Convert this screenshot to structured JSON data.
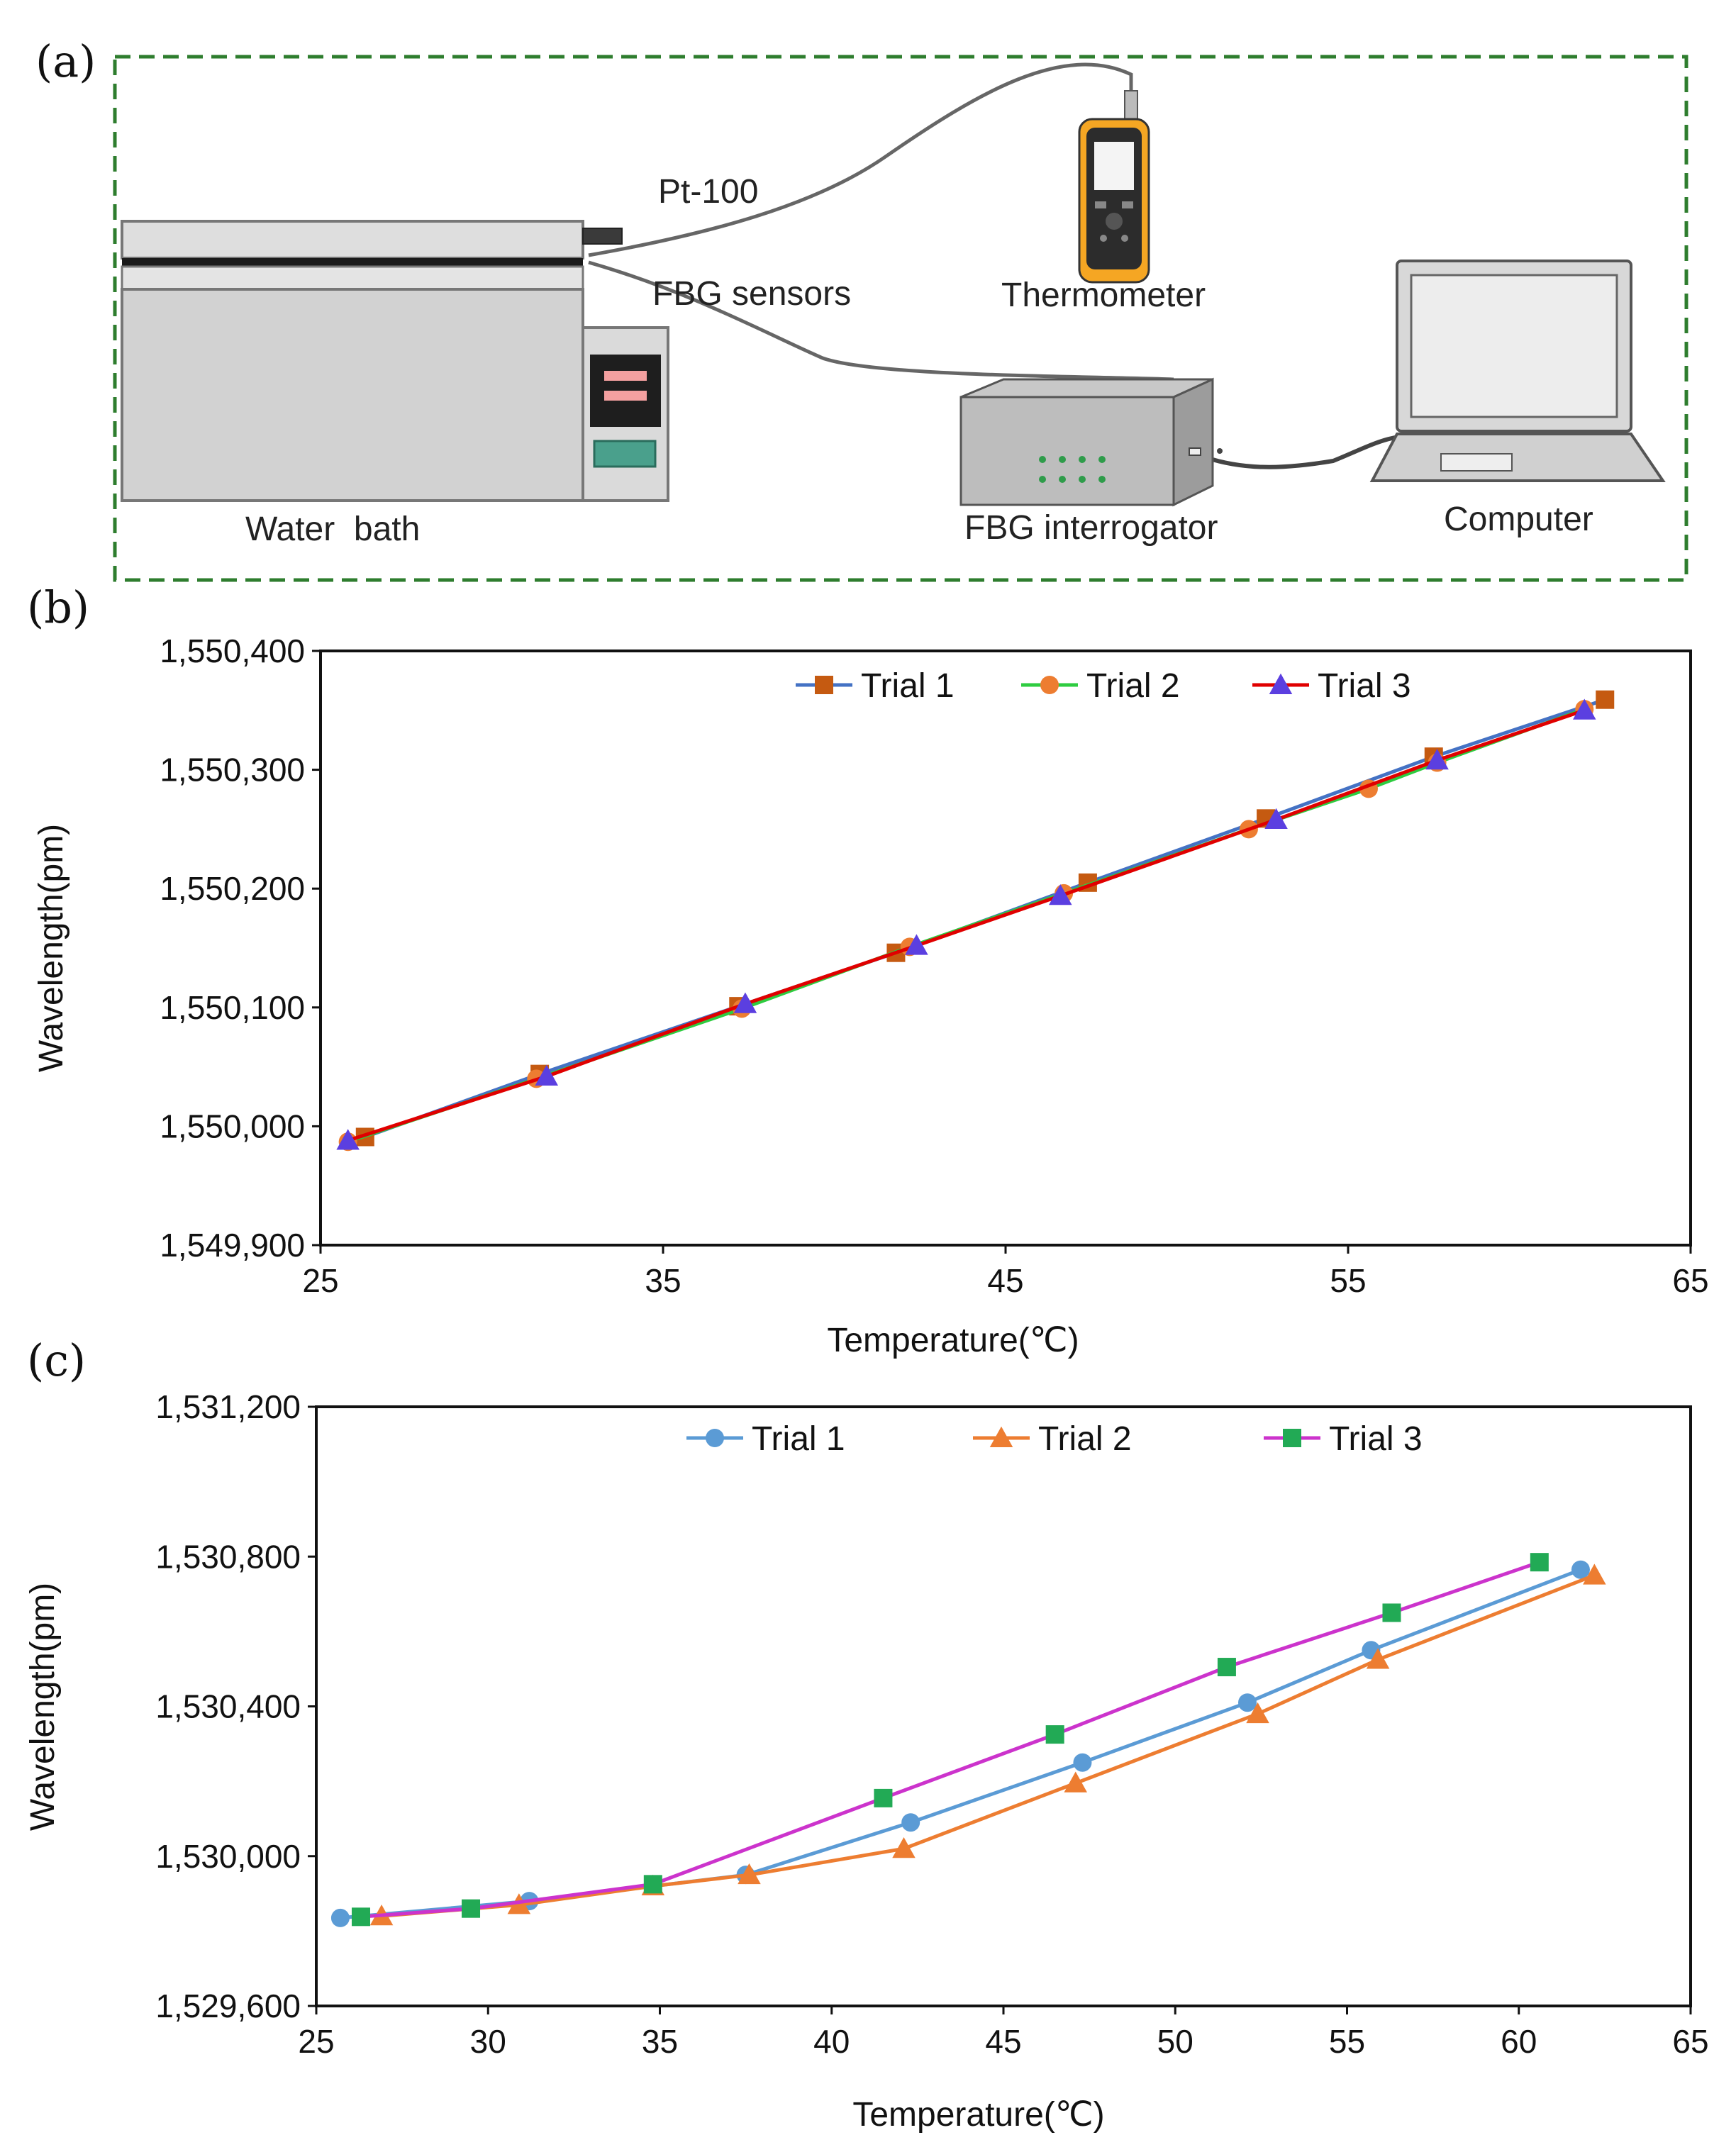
{
  "diagram": {
    "panel_label": "(a)",
    "labels": {
      "pt100": "Pt-100",
      "fbg_sensors": "FBG sensors",
      "thermometer": "Thermometer",
      "computer": "Computer",
      "water_bath": "Water  bath",
      "interrogator": "FBG interrogator"
    },
    "colors": {
      "frame": "#2e7d2e",
      "device_gray": "#d2d2d2",
      "display_red": "#f4a0a0",
      "display_teal": "#4aa08c",
      "thermo_orange": "#f5a623",
      "led_green": "#2e9c4a"
    }
  },
  "chart_data": [
    {
      "panel_label": "(b)",
      "type": "line",
      "xlabel": "Temperature(℃)",
      "ylabel": "Wavelength(pm)",
      "xlim": [
        25,
        65
      ],
      "ylim": [
        1549900,
        1550400
      ],
      "xticks": [
        25,
        35,
        45,
        55,
        65
      ],
      "xtick_labels": [
        "25",
        "35",
        "45",
        "55",
        "65"
      ],
      "yticks": [
        1549900,
        1550000,
        1550100,
        1550200,
        1550300,
        1550400
      ],
      "ytick_labels": [
        "1,549,900",
        "1,550,000",
        "1,550,100",
        "1,550,200",
        "1,550,300",
        "1,550,400"
      ],
      "legend_position": "top-center",
      "series": [
        {
          "name": "Trial 1",
          "line_color": "#4472c4",
          "marker_color": "#c55a11",
          "marker": "square",
          "x": [
            26.3,
            31.4,
            37.2,
            41.8,
            47.4,
            52.6,
            57.5,
            62.5
          ],
          "y": [
            1549991,
            1550044,
            1550101,
            1550146,
            1550205,
            1550259,
            1550311,
            1550359
          ]
        },
        {
          "name": "Trial 2",
          "line_color": "#2ecc40",
          "marker_color": "#ed7d31",
          "marker": "circle",
          "x": [
            25.8,
            31.3,
            37.3,
            42.2,
            46.7,
            52.1,
            55.6,
            57.6,
            61.9
          ],
          "y": [
            1549987,
            1550040,
            1550099,
            1550151,
            1550196,
            1550250,
            1550284,
            1550306,
            1550351
          ]
        },
        {
          "name": "Trial 3",
          "line_color": "#e00000",
          "marker_color": "#5b3fe0",
          "marker": "triangle",
          "x": [
            25.8,
            31.6,
            37.4,
            42.4,
            46.6,
            52.9,
            57.6,
            61.9
          ],
          "y": [
            1549988,
            1550042,
            1550103,
            1550152,
            1550194,
            1550258,
            1550308,
            1550350
          ]
        }
      ]
    },
    {
      "panel_label": "(c)",
      "type": "line",
      "xlabel": "Temperature(℃)",
      "ylabel": "Wavelength(pm)",
      "xlim": [
        25,
        65
      ],
      "ylim": [
        1529600,
        1531200
      ],
      "xticks": [
        25,
        30,
        35,
        40,
        45,
        50,
        55,
        60,
        65
      ],
      "xtick_labels": [
        "25",
        "30",
        "35",
        "40",
        "45",
        "50",
        "55",
        "60",
        "65"
      ],
      "yticks": [
        1529600,
        1530000,
        1530400,
        1530800,
        1531200
      ],
      "ytick_labels": [
        "1,529,600",
        "1,530,000",
        "1,530,400",
        "1,530,800",
        "1,531,200"
      ],
      "legend_position": "top-center",
      "series": [
        {
          "name": "Trial 1",
          "line_color": "#5b9bd5",
          "marker_color": "#5b9bd5",
          "marker": "circle",
          "x": [
            25.7,
            31.2,
            37.5,
            42.3,
            47.3,
            52.1,
            55.7,
            61.8
          ],
          "y": [
            1529835,
            1529880,
            1529950,
            1530090,
            1530250,
            1530410,
            1530550,
            1530765
          ]
        },
        {
          "name": "Trial 2",
          "line_color": "#ed7d31",
          "marker_color": "#ed7d31",
          "marker": "triangle",
          "x": [
            26.9,
            30.9,
            34.8,
            37.6,
            42.1,
            47.1,
            52.4,
            55.9,
            62.2
          ],
          "y": [
            1529840,
            1529870,
            1529920,
            1529950,
            1530020,
            1530195,
            1530380,
            1530525,
            1530750
          ]
        },
        {
          "name": "Trial 3",
          "line_color": "#cc33cc",
          "marker_color": "#22aa55",
          "marker": "square",
          "x": [
            26.3,
            29.5,
            34.8,
            41.5,
            46.5,
            51.5,
            56.3,
            60.6
          ],
          "y": [
            1529838,
            1529860,
            1529925,
            1530155,
            1530325,
            1530505,
            1530650,
            1530785
          ]
        }
      ]
    }
  ]
}
